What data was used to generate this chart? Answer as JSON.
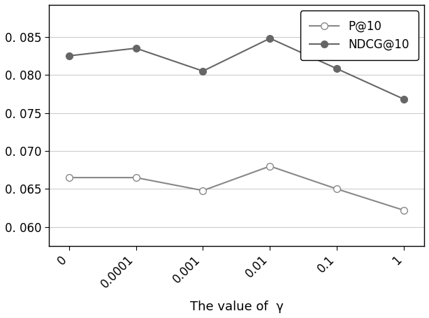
{
  "x_labels": [
    "0",
    "0.0001",
    "0.001",
    "0.01",
    "0.1",
    "1"
  ],
  "x_values": [
    0,
    1,
    2,
    3,
    4,
    5
  ],
  "p10_values": [
    0.0665,
    0.0665,
    0.0648,
    0.068,
    0.065,
    0.0622
  ],
  "ndcg10_values": [
    0.0825,
    0.0835,
    0.0805,
    0.0848,
    0.0808,
    0.0768
  ],
  "p10_color": "#888888",
  "ndcg10_color": "#666666",
  "p10_marker": "o",
  "ndcg10_marker": "o",
  "p10_marker_facecolor": "white",
  "ndcg10_marker_facecolor": "#666666",
  "legend_p10": "P@10",
  "legend_ndcg10": "NDCG@10",
  "xlabel": "The value of  γ",
  "ylabel": "",
  "ylim_min": 0.0575,
  "ylim_max": 0.0892,
  "yticks": [
    0.06,
    0.065,
    0.07,
    0.075,
    0.08,
    0.085
  ],
  "background_color": "#ffffff",
  "plot_background": "#ffffff",
  "grid_color": "#cccccc",
  "linewidth": 1.5,
  "markersize": 7,
  "tick_label_fontsize": 12,
  "xlabel_fontsize": 13,
  "legend_fontsize": 12
}
